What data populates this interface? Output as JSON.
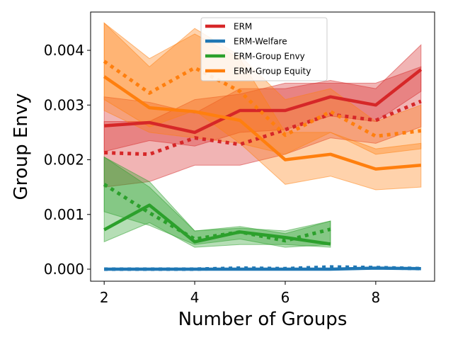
{
  "chart_data": {
    "type": "line",
    "xlabel": "Number of Groups",
    "ylabel": "Group Envy",
    "xlim": [
      1.7,
      9.3
    ],
    "ylim": [
      -0.00022,
      0.0047
    ],
    "xticks": [
      2,
      4,
      6,
      8
    ],
    "xtick_labels": [
      "2",
      "4",
      "6",
      "8"
    ],
    "yticks": [
      0.0,
      0.001,
      0.002,
      0.003,
      0.004
    ],
    "ytick_labels": [
      "0.000",
      "0.001",
      "0.002",
      "0.003",
      "0.004"
    ],
    "grid": false,
    "legend_position": "top-center",
    "series": [
      {
        "name": "ERM",
        "color": "#d62728",
        "x": [
          2,
          3,
          4,
          5,
          6,
          7,
          8,
          9
        ],
        "values": [
          0.00262,
          0.00268,
          0.0025,
          0.0029,
          0.0029,
          0.00315,
          0.003,
          0.00365
        ],
        "band_low": [
          0.00215,
          0.00235,
          0.00225,
          0.0025,
          0.00255,
          0.0028,
          0.0027,
          0.00325
        ],
        "band_high": [
          0.00315,
          0.00305,
          0.00285,
          0.0033,
          0.0033,
          0.00345,
          0.0033,
          0.0041
        ]
      },
      {
        "name": "ERM",
        "color": "#d62728",
        "dotted": true,
        "x": [
          2,
          3,
          4,
          5,
          6,
          7,
          8,
          9
        ],
        "values": [
          0.00213,
          0.0021,
          0.0024,
          0.00228,
          0.00255,
          0.00283,
          0.00272,
          0.00307
        ],
        "band_low": [
          0.0015,
          0.0016,
          0.0019,
          0.0019,
          0.0021,
          0.0024,
          0.0023,
          0.0026
        ],
        "band_high": [
          0.0027,
          0.0027,
          0.0031,
          0.0032,
          0.0034,
          0.0034,
          0.0034,
          0.0037
        ]
      },
      {
        "name": "ERM-Welfare",
        "color": "#1f77b4",
        "x": [
          2,
          3,
          4,
          5,
          6,
          7,
          8,
          9
        ],
        "values": [
          0.0,
          0.0,
          0.0,
          0.0,
          0.0,
          0.0,
          2e-05,
          1e-05
        ]
      },
      {
        "name": "ERM-Welfare",
        "color": "#1f77b4",
        "dotted": true,
        "x": [
          2,
          3,
          4,
          5,
          6,
          7,
          8,
          9
        ],
        "values": [
          0.0,
          0.0,
          0.0,
          2e-05,
          1e-05,
          4e-05,
          3e-05,
          1e-05
        ]
      },
      {
        "name": "ERM-Group Envy",
        "color": "#2ca02c",
        "x": [
          2,
          3,
          4,
          5,
          6,
          7
        ],
        "values": [
          0.00072,
          0.00117,
          0.0005,
          0.00068,
          0.00058,
          0.00046
        ],
        "band_low": [
          0.0005,
          0.00085,
          0.0004,
          0.00045,
          0.00045,
          0.0004
        ],
        "band_high": [
          0.00205,
          0.0016,
          0.0007,
          0.00075,
          0.0007,
          0.00088
        ]
      },
      {
        "name": "ERM-Group Envy",
        "color": "#2ca02c",
        "dotted": true,
        "x": [
          2,
          3,
          4,
          5,
          6,
          7
        ],
        "values": [
          0.00155,
          0.00103,
          0.00055,
          0.00068,
          0.00052,
          0.00073
        ],
        "band_low": [
          0.00105,
          0.0008,
          0.00045,
          0.00055,
          0.0004,
          0.00045
        ],
        "band_high": [
          0.00205,
          0.0015,
          0.0007,
          0.00078,
          0.00065,
          0.00088
        ]
      },
      {
        "name": "ERM-Group Equity",
        "color": "#ff7f0e",
        "x": [
          2,
          3,
          4,
          5,
          6,
          7,
          8,
          9
        ],
        "values": [
          0.00352,
          0.00295,
          0.00288,
          0.00272,
          0.002,
          0.0021,
          0.00183,
          0.0019
        ],
        "band_low": [
          0.0029,
          0.0025,
          0.0024,
          0.0023,
          0.00155,
          0.0017,
          0.00145,
          0.0015
        ],
        "band_high": [
          0.0045,
          0.00385,
          0.0043,
          0.00385,
          0.0025,
          0.0025,
          0.0022,
          0.0023
        ]
      },
      {
        "name": "ERM-Group Equity",
        "color": "#ff7f0e",
        "dotted": true,
        "x": [
          2,
          3,
          4,
          5,
          6,
          7,
          8,
          9
        ],
        "values": [
          0.0038,
          0.00322,
          0.00368,
          0.00325,
          0.00245,
          0.00288,
          0.00243,
          0.00253
        ],
        "band_low": [
          0.0031,
          0.0026,
          0.0029,
          0.0023,
          0.0021,
          0.0025,
          0.0021,
          0.0022
        ],
        "band_high": [
          0.0045,
          0.0037,
          0.0044,
          0.0039,
          0.0031,
          0.0033,
          0.0027,
          0.003
        ]
      }
    ],
    "legend": [
      {
        "name": "ERM",
        "color": "#d62728"
      },
      {
        "name": "ERM-Welfare",
        "color": "#1f77b4"
      },
      {
        "name": "ERM-Group Envy",
        "color": "#2ca02c"
      },
      {
        "name": "ERM-Group Equity",
        "color": "#ff7f0e"
      }
    ]
  }
}
